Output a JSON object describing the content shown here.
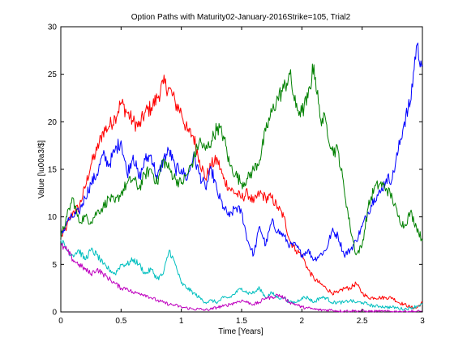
{
  "chart_data": {
    "type": "line",
    "title": "Option Paths with Maturity02-January-2016Strike=105, Trial2",
    "xlabel": "Time [Years]",
    "ylabel": "Value [\\u00a3/$]",
    "xlim": [
      0,
      3
    ],
    "ylim": [
      0,
      30
    ],
    "x_ticks": [
      "0",
      "0.5",
      "1",
      "1.5",
      "2",
      "2.5",
      "3"
    ],
    "y_ticks": [
      "0",
      "5",
      "10",
      "15",
      "20",
      "25",
      "30"
    ],
    "grid": false,
    "legend": false,
    "series": [
      {
        "color": "#ff0000",
        "x": [
          0,
          0.05,
          0.1,
          0.15,
          0.2,
          0.25,
          0.3,
          0.35,
          0.4,
          0.45,
          0.5,
          0.55,
          0.6,
          0.65,
          0.7,
          0.75,
          0.8,
          0.85,
          0.9,
          0.95,
          1.0,
          1.05,
          1.1,
          1.15,
          1.2,
          1.25,
          1.3,
          1.35,
          1.4,
          1.45,
          1.5,
          1.55,
          1.6,
          1.65,
          1.7,
          1.75,
          1.8,
          1.85,
          1.9,
          1.95,
          2.0,
          2.05,
          2.1,
          2.15,
          2.2,
          2.25,
          2.3,
          2.35,
          2.4,
          2.45,
          2.5,
          2.55,
          2.6,
          2.65,
          2.7,
          2.75,
          2.8,
          2.85,
          2.9,
          2.95,
          3.0
        ],
        "y": [
          7.8,
          9.0,
          10.5,
          11.0,
          13.0,
          15.5,
          17.0,
          19.0,
          19.5,
          20.5,
          22.0,
          21.0,
          20.0,
          19.5,
          21.0,
          21.5,
          22.5,
          24.0,
          23.5,
          22.0,
          21.0,
          19.0,
          18.5,
          16.0,
          14.0,
          15.5,
          16.0,
          14.0,
          13.0,
          12.5,
          12.0,
          12.5,
          11.5,
          12.5,
          12.0,
          12.0,
          11.0,
          10.0,
          7.5,
          6.5,
          6.0,
          4.5,
          3.5,
          3.0,
          2.5,
          2.0,
          2.0,
          2.5,
          2.5,
          3.0,
          2.0,
          1.5,
          1.5,
          1.5,
          1.5,
          1.5,
          1.0,
          0.8,
          0.5,
          0.4,
          1.0
        ]
      },
      {
        "color": "#0000ff",
        "x": [
          0,
          0.05,
          0.1,
          0.15,
          0.2,
          0.25,
          0.3,
          0.35,
          0.4,
          0.45,
          0.5,
          0.55,
          0.6,
          0.65,
          0.7,
          0.75,
          0.8,
          0.85,
          0.9,
          0.95,
          1.0,
          1.05,
          1.1,
          1.15,
          1.2,
          1.25,
          1.3,
          1.35,
          1.4,
          1.45,
          1.5,
          1.55,
          1.6,
          1.65,
          1.7,
          1.75,
          1.8,
          1.85,
          1.9,
          1.95,
          2.0,
          2.05,
          2.1,
          2.15,
          2.2,
          2.25,
          2.3,
          2.35,
          2.4,
          2.45,
          2.5,
          2.55,
          2.6,
          2.65,
          2.7,
          2.75,
          2.8,
          2.85,
          2.9,
          2.95,
          3.0
        ],
        "y": [
          7.8,
          9.5,
          10.0,
          10.5,
          12.0,
          13.5,
          14.5,
          16.5,
          15.5,
          17.0,
          18.0,
          14.5,
          16.5,
          14.0,
          16.0,
          16.5,
          14.0,
          16.0,
          17.0,
          15.0,
          15.0,
          14.0,
          16.5,
          14.5,
          13.0,
          15.0,
          12.5,
          11.0,
          10.0,
          11.0,
          10.5,
          7.5,
          6.0,
          9.0,
          7.0,
          9.5,
          8.5,
          8.0,
          7.0,
          7.0,
          6.0,
          6.5,
          5.5,
          6.0,
          6.5,
          8.5,
          8.0,
          6.0,
          6.5,
          7.5,
          9.0,
          10.5,
          12.0,
          12.5,
          14.0,
          14.0,
          17.0,
          20.0,
          22.0,
          28.0,
          26.0
        ]
      },
      {
        "color": "#008000",
        "x": [
          0,
          0.05,
          0.1,
          0.15,
          0.2,
          0.25,
          0.3,
          0.35,
          0.4,
          0.45,
          0.5,
          0.55,
          0.6,
          0.65,
          0.7,
          0.75,
          0.8,
          0.85,
          0.9,
          0.95,
          1.0,
          1.05,
          1.1,
          1.15,
          1.2,
          1.25,
          1.3,
          1.35,
          1.4,
          1.45,
          1.5,
          1.55,
          1.6,
          1.65,
          1.7,
          1.75,
          1.8,
          1.85,
          1.9,
          1.95,
          2.0,
          2.05,
          2.1,
          2.15,
          2.2,
          2.25,
          2.3,
          2.35,
          2.4,
          2.45,
          2.5,
          2.55,
          2.6,
          2.65,
          2.7,
          2.75,
          2.8,
          2.85,
          2.9,
          2.95,
          3.0
        ],
        "y": [
          7.8,
          10.0,
          12.0,
          9.5,
          10.0,
          9.5,
          10.5,
          11.0,
          12.0,
          11.5,
          12.5,
          13.5,
          14.0,
          13.0,
          14.5,
          15.0,
          13.5,
          16.0,
          15.0,
          14.0,
          13.5,
          14.5,
          16.0,
          18.0,
          17.0,
          18.0,
          19.5,
          18.5,
          15.5,
          14.5,
          13.5,
          14.0,
          15.0,
          16.0,
          19.0,
          21.0,
          22.5,
          23.5,
          25.0,
          21.5,
          21.0,
          22.5,
          26.0,
          20.5,
          20.0,
          17.0,
          17.0,
          13.0,
          9.0,
          6.0,
          7.0,
          11.0,
          13.0,
          13.5,
          13.0,
          12.0,
          10.0,
          9.0,
          10.5,
          9.0,
          7.5
        ]
      },
      {
        "color": "#00bfbf",
        "x": [
          0,
          0.05,
          0.1,
          0.15,
          0.2,
          0.25,
          0.3,
          0.35,
          0.4,
          0.45,
          0.5,
          0.55,
          0.6,
          0.65,
          0.7,
          0.75,
          0.8,
          0.85,
          0.9,
          0.95,
          1.0,
          1.05,
          1.1,
          1.15,
          1.2,
          1.25,
          1.3,
          1.35,
          1.4,
          1.45,
          1.5,
          1.55,
          1.6,
          1.65,
          1.7,
          1.75,
          1.8,
          1.85,
          1.9,
          1.95,
          2.0,
          2.05,
          2.1,
          2.15,
          2.2,
          2.25,
          2.3,
          2.35,
          2.4,
          2.45,
          2.5,
          2.55,
          2.6,
          2.65,
          2.7,
          2.75,
          2.8,
          2.85,
          2.9,
          2.95,
          3.0
        ],
        "y": [
          7.6,
          6.5,
          6.0,
          6.5,
          5.5,
          6.5,
          6.0,
          5.0,
          4.5,
          4.0,
          5.0,
          5.0,
          5.5,
          5.0,
          4.0,
          4.5,
          3.5,
          4.0,
          6.5,
          5.0,
          3.0,
          2.5,
          2.0,
          1.5,
          1.0,
          1.2,
          1.0,
          1.5,
          1.5,
          2.0,
          2.5,
          2.0,
          2.0,
          2.5,
          1.5,
          2.0,
          1.5,
          1.5,
          1.0,
          1.0,
          1.5,
          1.5,
          1.0,
          1.5,
          1.5,
          1.0,
          1.0,
          1.0,
          1.2,
          1.0,
          1.0,
          0.8,
          0.6,
          0.6,
          0.5,
          0.5,
          0.4,
          0.3,
          0.4,
          0.6,
          0.8
        ]
      },
      {
        "color": "#bf00bf",
        "x": [
          0,
          0.05,
          0.1,
          0.15,
          0.2,
          0.25,
          0.3,
          0.35,
          0.4,
          0.45,
          0.5,
          0.55,
          0.6,
          0.65,
          0.7,
          0.75,
          0.8,
          0.85,
          0.9,
          0.95,
          1.0,
          1.05,
          1.1,
          1.15,
          1.2,
          1.25,
          1.3,
          1.35,
          1.4,
          1.45,
          1.5,
          1.55,
          1.6,
          1.65,
          1.7,
          1.75,
          1.8,
          1.85,
          1.9,
          1.95,
          2.0,
          2.05,
          2.1,
          2.15,
          2.2,
          2.25,
          2.3,
          2.35,
          2.4,
          2.45,
          2.5,
          2.55,
          2.6,
          2.65,
          2.7,
          2.75,
          2.8,
          2.85,
          2.9,
          2.95,
          3.0
        ],
        "y": [
          7.0,
          6.5,
          5.5,
          5.0,
          4.5,
          4.0,
          4.5,
          4.0,
          3.5,
          3.0,
          2.5,
          2.5,
          2.0,
          2.0,
          1.8,
          1.5,
          1.2,
          1.0,
          0.8,
          0.7,
          0.5,
          0.4,
          0.3,
          0.3,
          0.2,
          0.3,
          0.5,
          0.6,
          0.8,
          1.0,
          1.2,
          1.0,
          0.8,
          1.0,
          1.5,
          1.5,
          1.8,
          1.5,
          1.0,
          0.8,
          0.5,
          0.4,
          0.3,
          0.2,
          0.2,
          0.2,
          0.1,
          0.1,
          0.1,
          0.1,
          0.1,
          0.05,
          0.05,
          0.05,
          0.05,
          0.05,
          0.05,
          0.05,
          0.05,
          0.05,
          0.05
        ]
      }
    ]
  }
}
